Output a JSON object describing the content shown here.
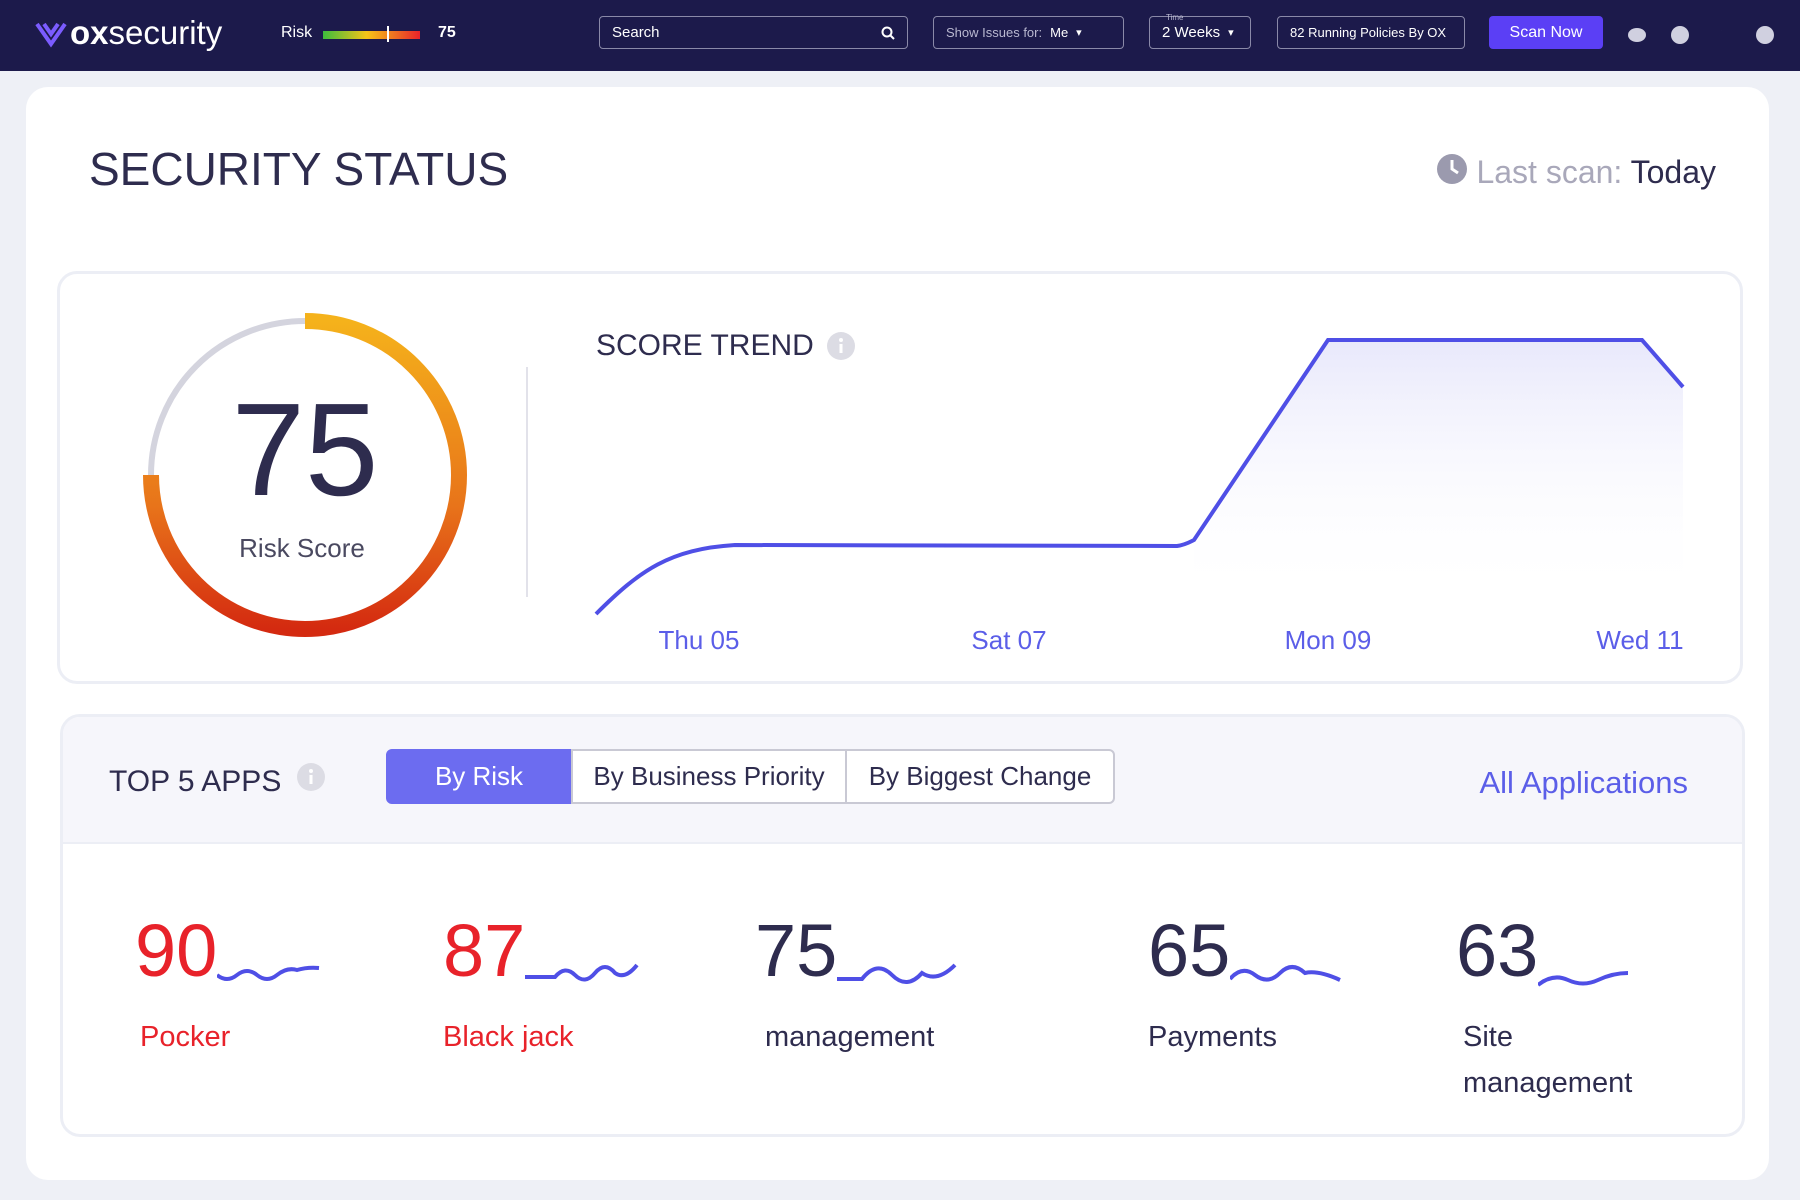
{
  "header": {
    "logo_bold": "ox",
    "logo_rest": "security",
    "risk_label": "Risk",
    "risk_value": 75,
    "search_placeholder": "Search",
    "show_issues_label": "Show Issues for:",
    "show_issues_value": "Me",
    "time_label": "Time",
    "time_value": "2 Weeks",
    "policies": "82 Running Policies By OX",
    "scan_button": "Scan Now"
  },
  "status": {
    "title": "SECURITY STATUS",
    "last_scan_label": "Last scan:",
    "last_scan_value": "Today"
  },
  "risk_score": {
    "value": 75,
    "label": "Risk Score"
  },
  "score_trend": {
    "title": "SCORE TREND",
    "x_labels": [
      "Thu 05",
      "Sat 07",
      "Mon 09",
      "Wed 11"
    ]
  },
  "top_apps": {
    "title": "TOP 5 APPS",
    "tabs": [
      "By Risk",
      "By Business Priority",
      "By Biggest Change"
    ],
    "link": "All Applications",
    "apps": [
      {
        "score": 90,
        "name": "Pocker",
        "color": "#e8222a"
      },
      {
        "score": 87,
        "name": "Black jack",
        "color": "#e8222a"
      },
      {
        "score": 75,
        "name": "management",
        "color": "#2e2c4e"
      },
      {
        "score": 65,
        "name": "Payments",
        "color": "#2e2c4e"
      },
      {
        "score": 63,
        "name": "Site management",
        "color": "#2e2c4e"
      }
    ]
  }
}
